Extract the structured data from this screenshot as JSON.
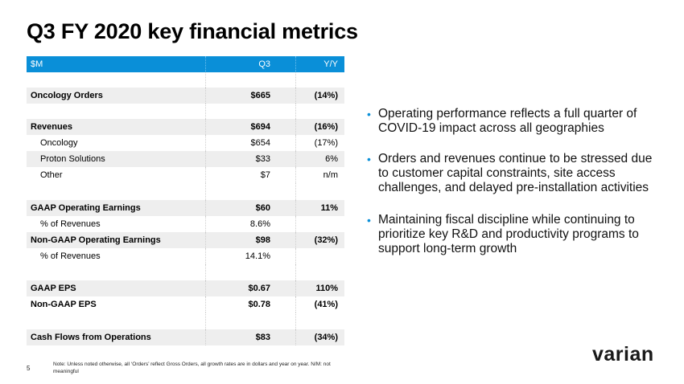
{
  "title": "Q3 FY 2020 key financial metrics",
  "table": {
    "header": {
      "label": "$M",
      "q3": "Q3",
      "yy": "Y/Y"
    },
    "rows": {
      "oncology_orders": {
        "label": "Oncology Orders",
        "q3": "$665",
        "yy": "(14%)"
      },
      "revenues": {
        "label": "Revenues",
        "q3": "$694",
        "yy": "(16%)"
      },
      "oncology": {
        "label": "Oncology",
        "q3": "$654",
        "yy": "(17%)"
      },
      "proton": {
        "label": "Proton Solutions",
        "q3": "$33",
        "yy": "6%"
      },
      "other": {
        "label": "Other",
        "q3": "$7",
        "yy": "n/m"
      },
      "gaap_op": {
        "label": "GAAP Operating Earnings",
        "q3": "$60",
        "yy": "11%"
      },
      "gaap_pct": {
        "label": "% of Revenues",
        "q3": "8.6%",
        "yy": ""
      },
      "nongaap_op": {
        "label": "Non-GAAP Operating Earnings",
        "q3": "$98",
        "yy": "(32%)"
      },
      "nongaap_pct": {
        "label": "% of Revenues",
        "q3": "14.1%",
        "yy": ""
      },
      "gaap_eps": {
        "label": "GAAP EPS",
        "q3": "$0.67",
        "yy": "110%"
      },
      "nongaap_eps": {
        "label": "Non-GAAP EPS",
        "q3": "$0.78",
        "yy": "(41%)"
      },
      "cash_flows": {
        "label": "Cash Flows from Operations",
        "q3": "$83",
        "yy": "(34%)"
      }
    }
  },
  "bullets": [
    "Operating performance reflects a full quarter of COVID-19 impact across all geographies",
    "Orders and revenues continue to be stressed due to customer capital constraints, site access challenges, and delayed pre-installation activities",
    "Maintaining fiscal discipline while continuing to prioritize key R&D and productivity programs to support long-term growth"
  ],
  "bullet_symbol": "•",
  "note": "Note: Unless noted otherwise, all ‘Orders’ reflect Gross Orders, all growth rates are in dollars and year on year.  N/M: not meaningful",
  "page_number": "5",
  "logo": "varian",
  "colors": {
    "accent": "#0a8fd8",
    "shade": "#eeeeee"
  }
}
